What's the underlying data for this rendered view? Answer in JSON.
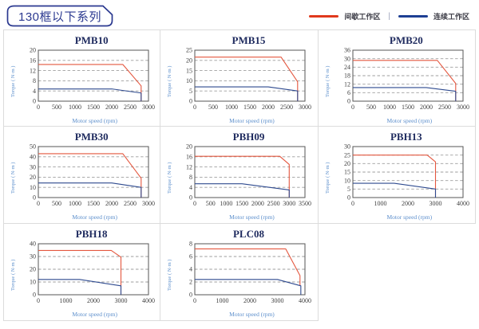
{
  "header": {
    "series_title": "130框以下系列",
    "legend": {
      "intermittent_label": "间歇工作区",
      "continuous_label": "连续工作区",
      "separator": "|",
      "intermittent_color": "#e0391c",
      "continuous_color": "#1e3f93"
    }
  },
  "colors": {
    "intermittent_curve": "#e4573f",
    "continuous_curve": "#2e4a8f",
    "grid_line": "#9e9e9e",
    "plot_frame": "#555555",
    "tick_text": "#3f3f3f",
    "axis_caption": "#5d8fcc",
    "chart_title": "#1e2a5e",
    "cell_border": "#dcdcdc",
    "header_accent": "#2b3990"
  },
  "chart_data": [
    {
      "type": "line",
      "title": "PMB10",
      "xlabel": "Motor speed (rpm)",
      "ylabel": "Torque ( N·m )",
      "xlim": [
        0,
        3000
      ],
      "xtick_step": 500,
      "ylim": [
        0,
        20
      ],
      "ytick_step": 4,
      "grid": "horizontal-dashed",
      "legend_position": "none",
      "series": [
        {
          "name": "间歇工作区",
          "color": "#e4573f",
          "points": [
            [
              0,
              14.4
            ],
            [
              2300,
              14.4
            ],
            [
              2800,
              6
            ],
            [
              2800,
              0
            ]
          ]
        },
        {
          "name": "连续工作区",
          "color": "#2e4a8f",
          "points": [
            [
              0,
              4.8
            ],
            [
              2000,
              4.8
            ],
            [
              2800,
              3.2
            ],
            [
              2800,
              0
            ]
          ]
        }
      ]
    },
    {
      "type": "line",
      "title": "PMB15",
      "xlabel": "Motor speed (rpm)",
      "ylabel": "Torque ( N·m )",
      "xlim": [
        0,
        3000
      ],
      "xtick_step": 500,
      "ylim": [
        0,
        25
      ],
      "ytick_step": 5,
      "grid": "horizontal-dashed",
      "legend_position": "none",
      "series": [
        {
          "name": "间歇工作区",
          "color": "#e4573f",
          "points": [
            [
              0,
              21.6
            ],
            [
              2350,
              21.6
            ],
            [
              2800,
              9.5
            ],
            [
              2800,
              0
            ]
          ]
        },
        {
          "name": "连续工作区",
          "color": "#2e4a8f",
          "points": [
            [
              0,
              7
            ],
            [
              2000,
              7
            ],
            [
              2800,
              5
            ],
            [
              2800,
              0
            ]
          ]
        }
      ]
    },
    {
      "type": "line",
      "title": "PMB20",
      "xlabel": "Motor speed (rpm)",
      "ylabel": "Torque ( N·m )",
      "xlim": [
        0,
        3000
      ],
      "xtick_step": 500,
      "ylim": [
        0,
        36
      ],
      "ytick_step": 6,
      "grid": "horizontal-dashed",
      "legend_position": "none",
      "series": [
        {
          "name": "间歇工作区",
          "color": "#e4573f",
          "points": [
            [
              0,
              28.8
            ],
            [
              2300,
              28.8
            ],
            [
              2800,
              12.5
            ],
            [
              2800,
              0
            ]
          ]
        },
        {
          "name": "连续工作区",
          "color": "#2e4a8f",
          "points": [
            [
              0,
              9.6
            ],
            [
              2000,
              9.6
            ],
            [
              2800,
              7
            ],
            [
              2800,
              0
            ]
          ]
        }
      ]
    },
    {
      "type": "line",
      "title": "PMB30",
      "xlabel": "Motor speed (rpm)",
      "ylabel": "Torque ( N·m )",
      "xlim": [
        0,
        3000
      ],
      "xtick_step": 500,
      "ylim": [
        0,
        50
      ],
      "ytick_step": 10,
      "grid": "horizontal-dashed",
      "legend_position": "none",
      "series": [
        {
          "name": "间歇工作区",
          "color": "#e4573f",
          "points": [
            [
              0,
              43
            ],
            [
              2300,
              43
            ],
            [
              2800,
              19
            ],
            [
              2800,
              0
            ]
          ]
        },
        {
          "name": "连续工作区",
          "color": "#2e4a8f",
          "points": [
            [
              0,
              14.3
            ],
            [
              2000,
              14.3
            ],
            [
              2800,
              10
            ],
            [
              2800,
              0
            ]
          ]
        }
      ]
    },
    {
      "type": "line",
      "title": "PBH09",
      "xlabel": "Motor speed (rpm)",
      "ylabel": "Torque ( N·m )",
      "xlim": [
        0,
        3500
      ],
      "xtick_step": 500,
      "ylim": [
        0,
        20
      ],
      "ytick_step": 4,
      "grid": "horizontal-dashed",
      "legend_position": "none",
      "series": [
        {
          "name": "间歇工作区",
          "color": "#e4573f",
          "points": [
            [
              0,
              16.2
            ],
            [
              2700,
              16.2
            ],
            [
              3000,
              13
            ],
            [
              3000,
              0
            ]
          ]
        },
        {
          "name": "连续工作区",
          "color": "#2e4a8f",
          "points": [
            [
              0,
              5.4
            ],
            [
              1500,
              5.4
            ],
            [
              3000,
              3
            ],
            [
              3000,
              0
            ]
          ]
        }
      ]
    },
    {
      "type": "line",
      "title": "PBH13",
      "xlabel": "Motor speed (rpm)",
      "ylabel": "Torque ( N·m )",
      "xlim": [
        0,
        4000
      ],
      "xtick_step": 1000,
      "ylim": [
        0,
        30
      ],
      "ytick_step": 5,
      "grid": "horizontal-dashed",
      "legend_position": "none",
      "series": [
        {
          "name": "间歇工作区",
          "color": "#e4573f",
          "points": [
            [
              0,
              25
            ],
            [
              2700,
              25
            ],
            [
              3000,
              21
            ],
            [
              3000,
              0
            ]
          ]
        },
        {
          "name": "连续工作区",
          "color": "#2e4a8f",
          "points": [
            [
              0,
              8.4
            ],
            [
              1500,
              8.4
            ],
            [
              3000,
              5
            ],
            [
              3000,
              0
            ]
          ]
        }
      ]
    },
    {
      "type": "line",
      "title": "PBH18",
      "xlabel": "Motor speed (rpm)",
      "ylabel": "Torque ( N·m )",
      "xlim": [
        0,
        4000
      ],
      "xtick_step": 1000,
      "ylim": [
        0,
        40
      ],
      "ytick_step": 10,
      "grid": "horizontal-dashed",
      "legend_position": "none",
      "series": [
        {
          "name": "间歇工作区",
          "color": "#e4573f",
          "points": [
            [
              0,
              34.7
            ],
            [
              2650,
              34.7
            ],
            [
              3000,
              29.5
            ],
            [
              3000,
              0
            ]
          ]
        },
        {
          "name": "连续工作区",
          "color": "#2e4a8f",
          "points": [
            [
              0,
              12
            ],
            [
              1500,
              12
            ],
            [
              3000,
              7
            ],
            [
              3000,
              0
            ]
          ]
        }
      ]
    },
    {
      "type": "line",
      "title": "PLC08",
      "xlabel": "Motor speed (rpm)",
      "ylabel": "Torque ( N·m )",
      "xlim": [
        0,
        4000
      ],
      "xtick_step": 1000,
      "ylim": [
        0,
        8
      ],
      "ytick_step": 2,
      "grid": "horizontal-dashed",
      "legend_position": "none",
      "series": [
        {
          "name": "间歇工作区",
          "color": "#e4573f",
          "points": [
            [
              0,
              7.2
            ],
            [
              3300,
              7.2
            ],
            [
              3820,
              3
            ],
            [
              3820,
              1.4
            ]
          ]
        },
        {
          "name": "连续工作区",
          "color": "#2e4a8f",
          "points": [
            [
              0,
              2.4
            ],
            [
              3000,
              2.4
            ],
            [
              3850,
              1.4
            ],
            [
              3850,
              0
            ]
          ]
        }
      ]
    }
  ]
}
